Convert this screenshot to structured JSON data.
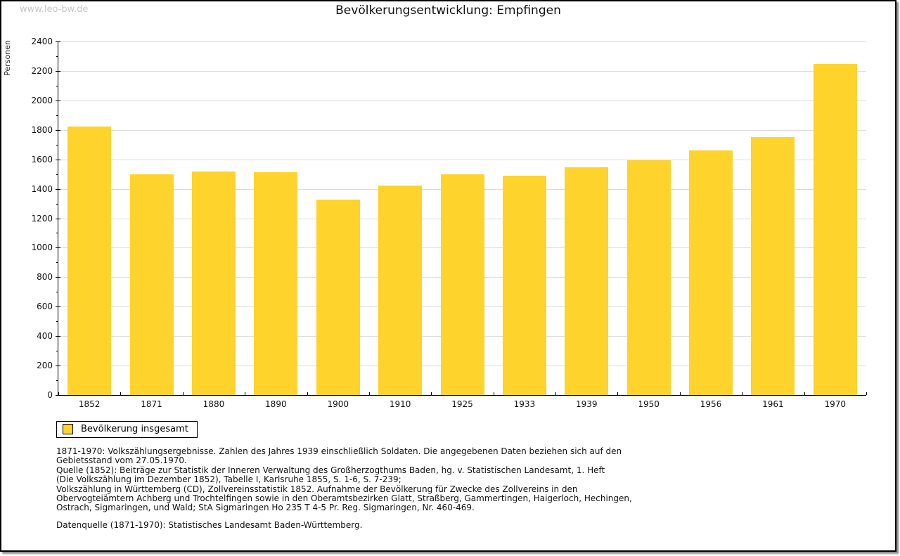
{
  "watermark": "www.leo-bw.de",
  "header": {
    "title": "Bevölkerungsentwicklung: Empfingen"
  },
  "legend": {
    "label": "Bevölkerung insgesamt"
  },
  "colors": {
    "bar": "#fdd32c",
    "grid": "#dcdcdc",
    "axis": "#000000",
    "watermark": "#c8c8c8"
  },
  "chart_data": {
    "type": "bar",
    "title": "Bevölkerungsentwicklung: Empfingen",
    "series_name": "Bevölkerung insgesamt",
    "categories": [
      "1852",
      "1871",
      "1880",
      "1890",
      "1900",
      "1910",
      "1925",
      "1933",
      "1939",
      "1950",
      "1956",
      "1961",
      "1970"
    ],
    "values": [
      1822,
      1497,
      1517,
      1511,
      1326,
      1421,
      1497,
      1489,
      1544,
      1592,
      1661,
      1750,
      2249
    ],
    "xlabel": "",
    "ylabel": "Personen",
    "ylim": [
      0,
      2400
    ],
    "ytick_step": 200,
    "yminor_step": 100,
    "grid": true,
    "legend_position": "bottom-left",
    "bar_color": "#fdd32c"
  },
  "footnotes": [
    "1871-1970: Volkszählungsergebnisse. Zahlen des Jahres 1939 einschließlich Soldaten. Die angegebenen Daten beziehen sich auf den",
    "Gebietsstand vom 27.05.1970.",
    "Quelle (1852): Beiträge zur Statistik der Inneren Verwaltung des Großherzogthums Baden, hg. v. Statistischen Landesamt, 1. Heft",
    "(Die Volkszählung im Dezember 1852), Tabelle I, Karlsruhe 1855, S. 1-6, S. 7-239;",
    "Volkszählung in Württemberg (CD), Zollvereinsstatistik 1852. Aufnahme der Bevölkerung für Zwecke des Zollvereins in den",
    "Obervogteiämtern Achberg und Trochtelfingen sowie in den Oberamtsbezirken Glatt, Straßberg, Gammertingen, Haigerloch, Hechingen,",
    "Ostrach, Sigmaringen, und Wald; StA Sigmaringen Ho 235 T 4-5 Pr. Reg. Sigmaringen, Nr. 460-469."
  ],
  "footer": {
    "datasource": "Datenquelle (1871-1970): Statistisches Landesamt Baden-Württemberg."
  }
}
